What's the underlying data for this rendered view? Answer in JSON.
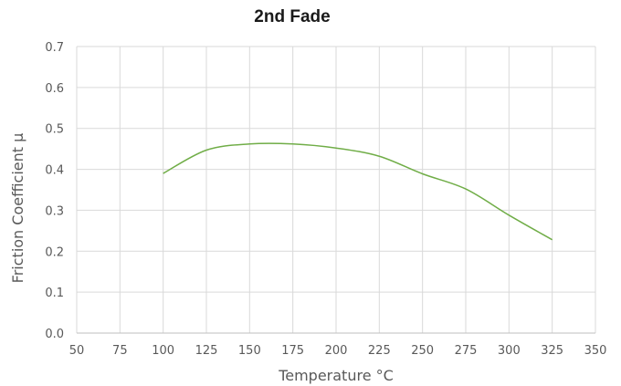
{
  "chart_data": {
    "type": "line",
    "title": "2nd Fade",
    "xlabel": "Temperature °C",
    "ylabel": "Friction Coefficient μ",
    "xlim": [
      50,
      350
    ],
    "ylim": [
      0.0,
      0.7
    ],
    "x_ticks": [
      "50",
      "75",
      "100",
      "125",
      "150",
      "175",
      "200",
      "225",
      "250",
      "275",
      "300",
      "325",
      "350"
    ],
    "y_ticks": [
      "0.0",
      "0.1",
      "0.2",
      "0.3",
      "0.4",
      "0.5",
      "0.6",
      "0.7"
    ],
    "grid": true,
    "legend": "none",
    "series": [
      {
        "color": "#70ad47",
        "x": [
          100,
          125,
          150,
          175,
          200,
          225,
          250,
          275,
          300,
          325
        ],
        "y": [
          0.39,
          0.447,
          0.462,
          0.462,
          0.452,
          0.432,
          0.389,
          0.352,
          0.288,
          0.228
        ]
      }
    ]
  }
}
